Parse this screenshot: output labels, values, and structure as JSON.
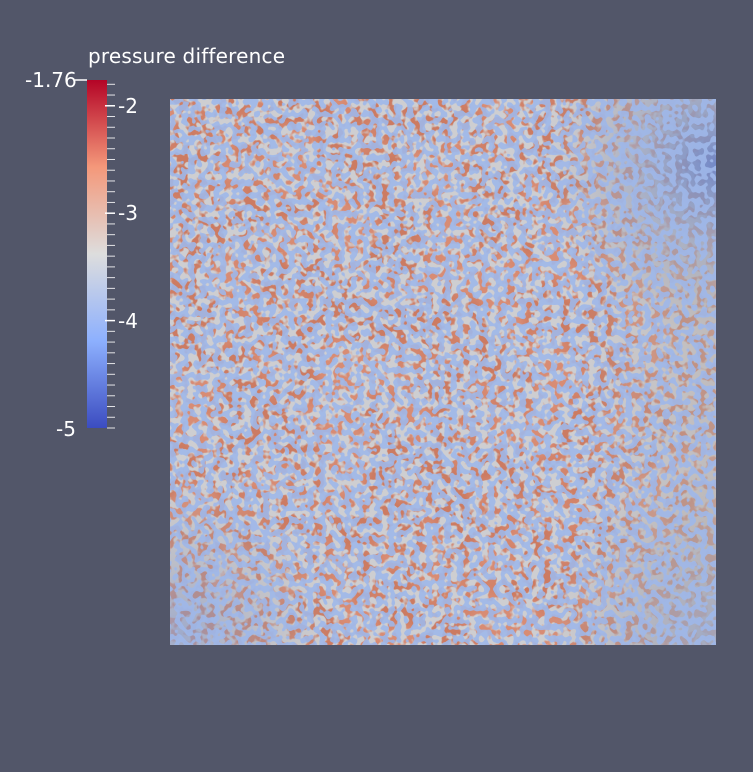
{
  "legend": {
    "title": "pressure difference",
    "range_max_label": "-1.76",
    "range_min_label": "-5",
    "range": [
      -5,
      -1.76
    ],
    "major_ticks": [
      {
        "value": -2,
        "label": "-2"
      },
      {
        "value": -3,
        "label": "-3"
      },
      {
        "value": -4,
        "label": "-4"
      }
    ],
    "colormap": [
      "#3b4cc0",
      "#8db0fe",
      "#dddddd",
      "#f4987a",
      "#b40426"
    ]
  },
  "colors": {
    "background": "#525669",
    "text": "#ffffff",
    "field_base": "#c87a62"
  }
}
